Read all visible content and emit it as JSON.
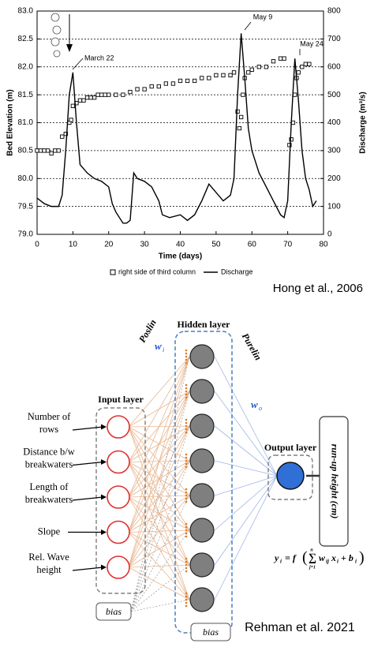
{
  "chart_data": {
    "type": "line",
    "x_label": "Time (days)",
    "y_label": "Bed Elevation (m)",
    "y2_label": "Discharge (m³/s)",
    "xlim": [
      0,
      80
    ],
    "xticks": [
      0,
      10,
      20,
      30,
      40,
      50,
      60,
      70,
      80
    ],
    "ylim": [
      79,
      83
    ],
    "yticks": [
      {
        "value": 79,
        "label": "79.0"
      },
      79.5,
      {
        "value": 80,
        "label": "80.0"
      },
      80.5,
      {
        "value": 81,
        "label": "81.0"
      },
      81.5,
      {
        "value": 82,
        "label": "82.0"
      },
      82.5,
      {
        "value": 83,
        "label": "83.0"
      }
    ],
    "y2lim": [
      0,
      800
    ],
    "y2ticks": [
      0,
      100,
      200,
      300,
      400,
      500,
      600,
      700,
      800
    ],
    "grid": true,
    "annotations": [
      "March 22",
      "May 9",
      "May 24"
    ],
    "series": [
      {
        "name": "right side of third column",
        "type": "scatter",
        "marker": "square",
        "color": "#000000",
        "x": [
          0,
          1,
          2,
          3,
          4,
          5,
          6,
          7,
          8,
          9,
          9.5,
          10,
          11,
          12,
          13,
          14,
          15,
          16,
          17,
          18,
          19,
          20,
          22,
          24,
          26,
          28,
          30,
          32,
          34,
          36,
          38,
          40,
          42,
          44,
          46,
          48,
          50,
          52,
          54,
          55,
          56,
          56.5,
          57,
          57.5,
          58,
          59,
          60,
          62,
          64,
          66,
          68,
          69,
          70.5,
          71,
          71.5,
          72,
          72.5,
          73,
          74,
          75,
          76
        ],
        "values": [
          80.5,
          80.5,
          80.5,
          80.5,
          80.45,
          80.5,
          80.5,
          80.75,
          80.8,
          81.0,
          81.05,
          81.3,
          81.35,
          81.4,
          81.4,
          81.45,
          81.45,
          81.45,
          81.5,
          81.5,
          81.5,
          81.5,
          81.5,
          81.5,
          81.55,
          81.6,
          81.6,
          81.65,
          81.65,
          81.7,
          81.7,
          81.75,
          81.75,
          81.75,
          81.8,
          81.8,
          81.85,
          81.85,
          81.85,
          81.9,
          81.2,
          80.9,
          81.1,
          81.5,
          81.8,
          81.9,
          81.95,
          82.0,
          82.0,
          82.1,
          82.15,
          82.15,
          80.6,
          80.7,
          81.0,
          81.5,
          81.8,
          81.9,
          82.0,
          82.05,
          82.05
        ]
      },
      {
        "name": "Discharge",
        "type": "line",
        "axis": "y2",
        "color": "#000000",
        "x": [
          0,
          2,
          4,
          6,
          7,
          8,
          9,
          10,
          11,
          12,
          14,
          16,
          18,
          20,
          21,
          22,
          24,
          25,
          26,
          27,
          28,
          30,
          32,
          34,
          35,
          37,
          40,
          42,
          44,
          46,
          48,
          50,
          52,
          54,
          55,
          56,
          57,
          58,
          59,
          60,
          62,
          64,
          66,
          68,
          69,
          70,
          71,
          72,
          73,
          74,
          75,
          76,
          77,
          78
        ],
        "values": [
          130,
          110,
          100,
          100,
          140,
          300,
          500,
          580,
          400,
          250,
          220,
          200,
          190,
          170,
          110,
          80,
          40,
          40,
          50,
          220,
          200,
          190,
          170,
          120,
          70,
          60,
          70,
          50,
          70,
          120,
          180,
          150,
          120,
          140,
          200,
          500,
          720,
          560,
          380,
          300,
          220,
          170,
          120,
          70,
          60,
          120,
          400,
          630,
          480,
          300,
          200,
          160,
          100,
          120
        ]
      }
    ]
  },
  "caption_top": "Hong et al., 2006",
  "diagram": {
    "hidden_title": "Hidden layer",
    "input_title": "Input layer",
    "output_title": "Output layer",
    "poslin": "Poslin",
    "w_i": {
      "w": "w",
      "sub": "i"
    },
    "purelin": "Purelin",
    "w_o": {
      "w": "w",
      "sub": "o"
    },
    "inputs": [
      [
        "Number of",
        "rows"
      ],
      [
        "Distance b/w",
        "breakwaters"
      ],
      [
        "Length of",
        "breakwaters"
      ],
      [
        "Slope"
      ],
      [
        "Rel. Wave",
        "height"
      ]
    ],
    "output_label": "run-up height (cm)",
    "formula": {
      "y": "y",
      "y_sub": "i",
      "eq": "= f",
      "open": "(",
      "sum": "∑",
      "upper": "n",
      "lower": "j=1",
      "w": "w",
      "w_sub": "ij",
      "x": "x",
      "x_sub": "i",
      "plus": "+ b",
      "b_sub": "i",
      "close": ")"
    },
    "bias": [
      "bias",
      "bias"
    ],
    "caption": "Rehman et al. 2021"
  }
}
